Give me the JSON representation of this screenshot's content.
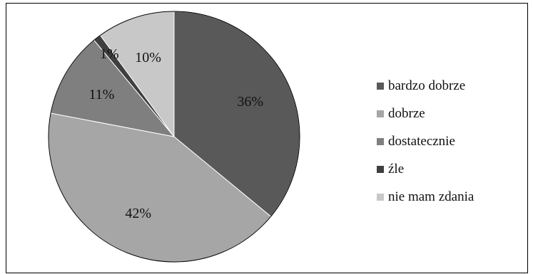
{
  "chart_data": {
    "type": "pie",
    "categories": [
      "bardzo dobrze",
      "dobrze",
      "dostatecznie",
      "źle",
      "nie mam zdania"
    ],
    "values": [
      36,
      42,
      11,
      1,
      10
    ],
    "labels": [
      "36%",
      "42%",
      "11%",
      "1%",
      "10%"
    ],
    "colors": [
      "#595959",
      "#a6a6a6",
      "#7f7f7f",
      "#3f3f3f",
      "#c8c8c8"
    ],
    "legend": "right",
    "start": "top, clockwise"
  }
}
